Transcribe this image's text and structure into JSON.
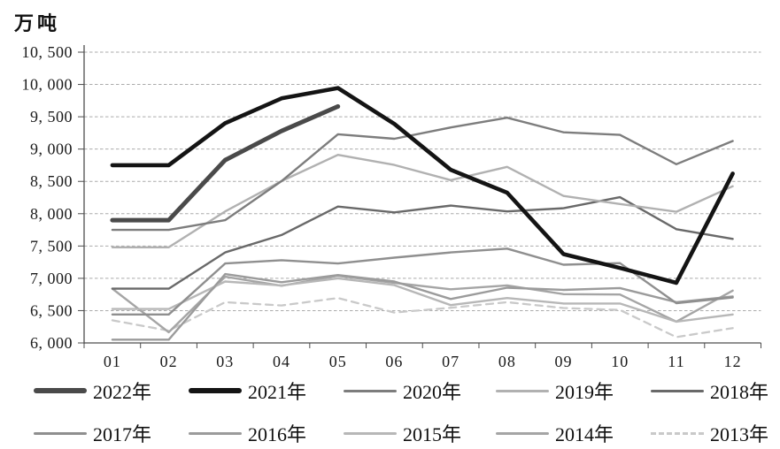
{
  "chart_data": {
    "type": "line",
    "title": "",
    "unit": "万吨",
    "xlabel": "",
    "ylabel": "万吨",
    "ylim": [
      6000,
      10500
    ],
    "grid": true,
    "legend_position": "bottom",
    "y_tick_labels": [
      "10, 500",
      "10, 000",
      "9, 500",
      "9, 000",
      "8, 500",
      "8, 000",
      "7, 500",
      "7, 000",
      "6, 500",
      "6, 000"
    ],
    "categories": [
      "01",
      "02",
      "03",
      "04",
      "05",
      "06",
      "07",
      "08",
      "09",
      "10",
      "11",
      "12"
    ],
    "series": [
      {
        "label": "2022年",
        "color": "#4a4a4a",
        "width": 5,
        "dash": null,
        "values": [
          7900,
          7900,
          8830,
          9280,
          9660,
          null,
          null,
          null,
          null,
          null,
          null,
          null
        ]
      },
      {
        "label": "2021年",
        "color": "#141414",
        "width": 4.6,
        "dash": null,
        "values": [
          8750,
          8750,
          9400,
          9785,
          9945,
          9390,
          8680,
          8325,
          7375,
          7160,
          6930,
          8620
        ]
      },
      {
        "label": "2020年",
        "color": "#7d7d7d",
        "width": 2.4,
        "dash": null,
        "values": [
          7750,
          7750,
          7900,
          8505,
          9230,
          9160,
          9335,
          9485,
          9260,
          9220,
          8765,
          9125
        ]
      },
      {
        "label": "2019年",
        "color": "#b1b1b1",
        "width": 2.4,
        "dash": null,
        "values": [
          7480,
          7480,
          8035,
          8505,
          8910,
          8755,
          8520,
          8725,
          8275,
          8150,
          8030,
          8425
        ]
      },
      {
        "label": "2018年",
        "color": "#696969",
        "width": 2.4,
        "dash": null,
        "values": [
          6840,
          6840,
          7400,
          7670,
          8110,
          8020,
          8125,
          8035,
          8085,
          8255,
          7760,
          7610
        ]
      },
      {
        "label": "2017年",
        "color": "#8f8f8f",
        "width": 2.4,
        "dash": null,
        "values": [
          6440,
          6440,
          7230,
          7280,
          7230,
          7320,
          7400,
          7460,
          7210,
          7235,
          6615,
          6705
        ]
      },
      {
        "label": "2016年",
        "color": "#9b9b9b",
        "width": 2.4,
        "dash": null,
        "values": [
          6050,
          6050,
          7065,
          6940,
          7050,
          6950,
          6680,
          6855,
          6820,
          6850,
          6630,
          6720
        ]
      },
      {
        "label": "2015年",
        "color": "#b7b7b7",
        "width": 2.4,
        "dash": null,
        "values": [
          6525,
          6525,
          6950,
          6890,
          7000,
          6895,
          6585,
          6695,
          6610,
          6610,
          6330,
          6440
        ]
      },
      {
        "label": "2014年",
        "color": "#a5a5a5",
        "width": 2.4,
        "dash": null,
        "values": [
          6840,
          6165,
          7025,
          6885,
          7040,
          6930,
          6830,
          6890,
          6755,
          6750,
          6330,
          6810
        ]
      },
      {
        "label": "2013年",
        "color": "#c9c9c9",
        "width": 2.3,
        "dash": "8 6",
        "values": [
          6350,
          6190,
          6630,
          6580,
          6695,
          6470,
          6545,
          6630,
          6540,
          6510,
          6090,
          6230
        ]
      }
    ]
  }
}
